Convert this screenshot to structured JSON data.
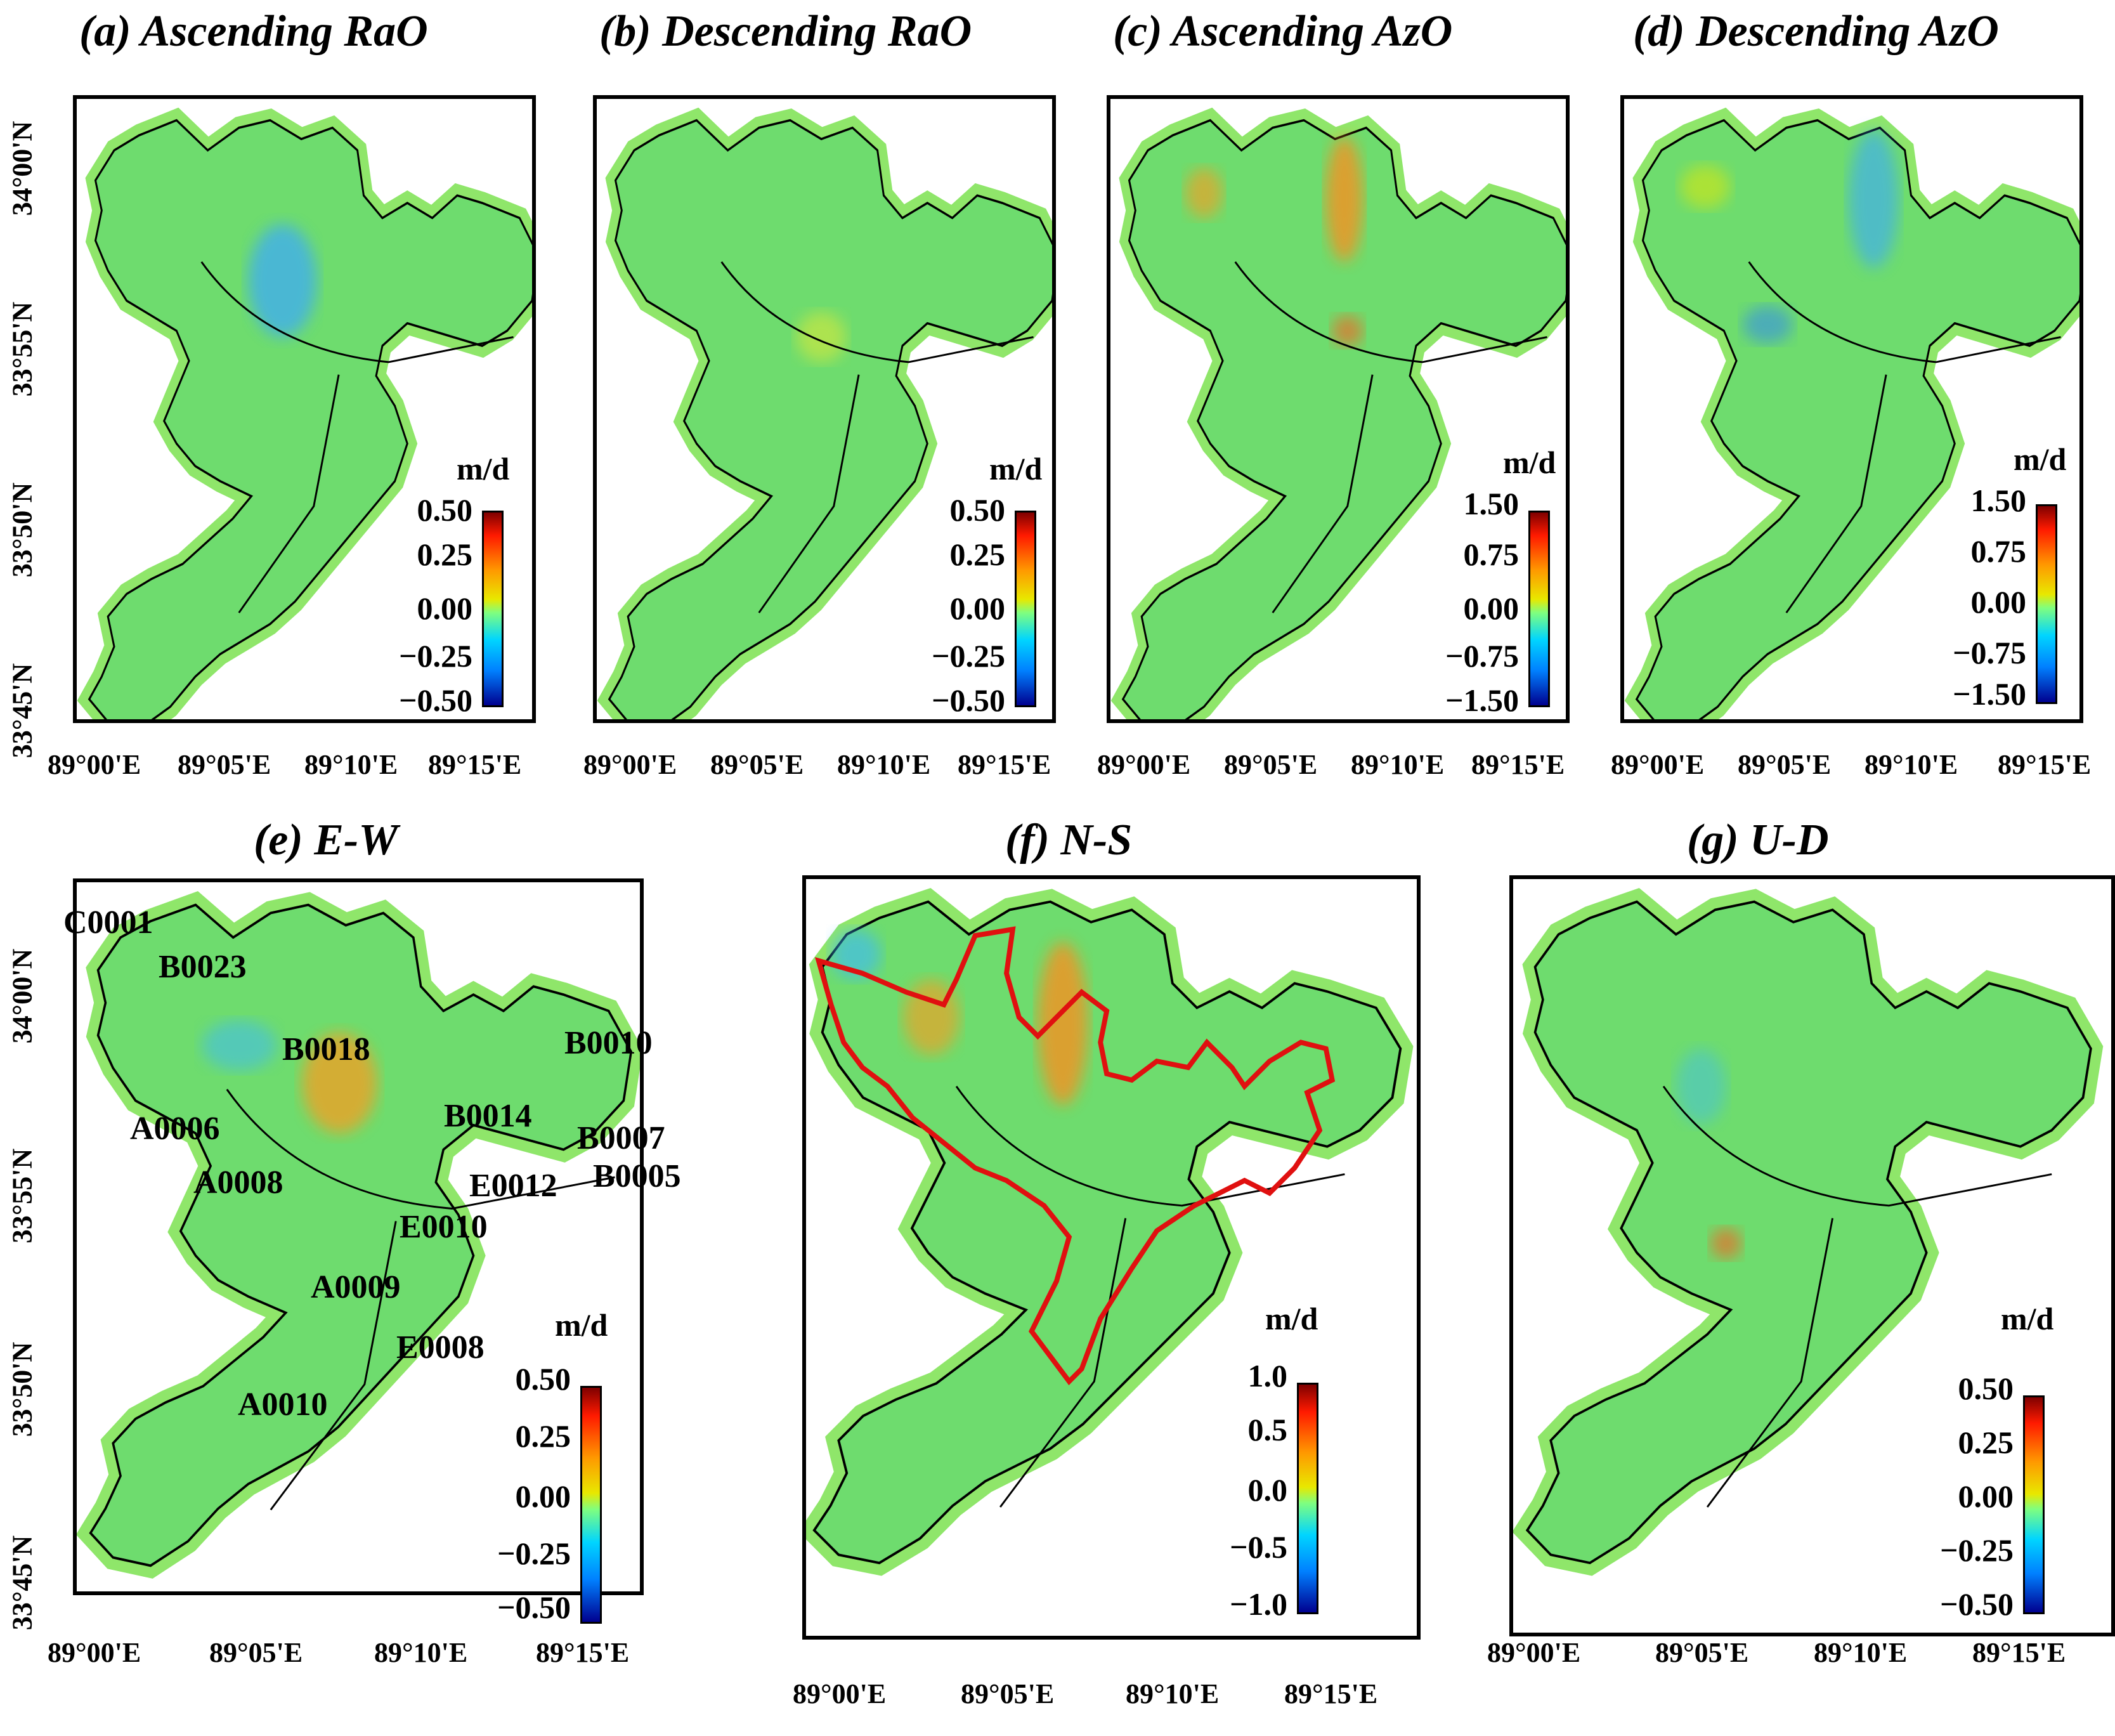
{
  "panels_top": [
    {
      "id": "a",
      "title": "(a) Ascending RaO",
      "unit": "m/d",
      "ticks": [
        "0.50",
        "0.25",
        "0.00",
        "−0.25",
        "−0.50"
      ]
    },
    {
      "id": "b",
      "title": "(b) Descending RaO",
      "unit": "m/d",
      "ticks": [
        "0.50",
        "0.25",
        "0.00",
        "−0.25",
        "−0.50"
      ]
    },
    {
      "id": "c",
      "title": "(c) Ascending AzO",
      "unit": "m/d",
      "ticks": [
        "1.50",
        "0.75",
        "0.00",
        "−0.75",
        "−1.50"
      ]
    },
    {
      "id": "d",
      "title": "(d) Descending AzO",
      "unit": "m/d",
      "ticks": [
        "1.50",
        "0.75",
        "0.00",
        "−0.75",
        "−1.50"
      ]
    }
  ],
  "panels_bottom": [
    {
      "id": "e",
      "title": "(e) E-W",
      "unit": "m/d",
      "ticks": [
        "0.50",
        "0.25",
        "0.00",
        "−0.25",
        "−0.50"
      ]
    },
    {
      "id": "f",
      "title": "(f) N-S",
      "unit": "m/d",
      "ticks": [
        "1.0",
        "0.5",
        "0.0",
        "−0.5",
        "−1.0"
      ]
    },
    {
      "id": "g",
      "title": "(g) U-D",
      "unit": "m/d",
      "ticks": [
        "0.50",
        "0.25",
        "0.00",
        "−0.25",
        "−0.50"
      ]
    }
  ],
  "lat_labels": [
    "34°00'N",
    "33°55'N",
    "33°50'N",
    "33°45'N"
  ],
  "lon_labels": [
    "89°00'E",
    "89°05'E",
    "89°10'E",
    "89°15'E"
  ],
  "glacier_labels": [
    "C0001",
    "B0023",
    "B0018",
    "B0010",
    "A0006",
    "B0014",
    "B0007",
    "A0008",
    "E0012",
    "B0005",
    "E0010",
    "A0009",
    "E0008",
    "A0010"
  ],
  "colors": {
    "ice": "#6edc6e",
    "halo": "#8fe66a",
    "outline": "#000000",
    "ns_boundary": "#e01010"
  }
}
